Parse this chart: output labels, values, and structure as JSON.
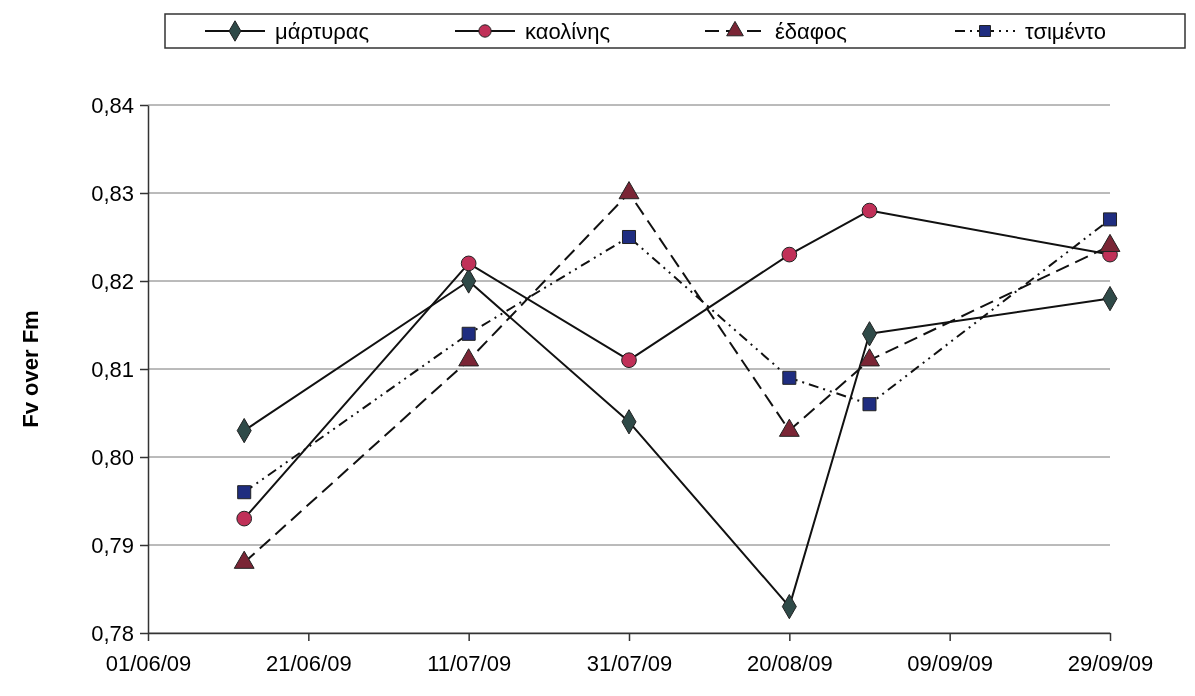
{
  "chart_data": {
    "type": "line",
    "ylabel": "Fv over Fm",
    "x": [
      "2009-06-13",
      "2009-07-11",
      "2009-07-31",
      "2009-08-20",
      "2009-08-30",
      "2009-09-29"
    ],
    "xlim": [
      "2009-06-01",
      "2009-09-29"
    ],
    "xticks": [
      {
        "value": "2009-06-01",
        "label": "01/06/09"
      },
      {
        "value": "2009-06-21",
        "label": "21/06/09"
      },
      {
        "value": "2009-07-11",
        "label": "11/07/09"
      },
      {
        "value": "2009-07-31",
        "label": "31/07/09"
      },
      {
        "value": "2009-08-20",
        "label": "20/08/09"
      },
      {
        "value": "2009-09-09",
        "label": "09/09/09"
      },
      {
        "value": "2009-09-29",
        "label": "29/09/09"
      }
    ],
    "ylim": [
      0.78,
      0.84
    ],
    "yticks": [
      {
        "value": 0.78,
        "label": "0,78"
      },
      {
        "value": 0.79,
        "label": "0,79"
      },
      {
        "value": 0.8,
        "label": "0,80"
      },
      {
        "value": 0.81,
        "label": "0,81"
      },
      {
        "value": 0.82,
        "label": "0,82"
      },
      {
        "value": 0.83,
        "label": "0,83"
      },
      {
        "value": 0.84,
        "label": "0,84"
      }
    ],
    "grid": "y",
    "legend": "top",
    "series": [
      {
        "name": "μάρτυρας",
        "color": "#2f4a48",
        "marker": "diamond",
        "line_style": "solid",
        "values": [
          0.803,
          0.82,
          0.804,
          0.783,
          0.814,
          0.818
        ]
      },
      {
        "name": "καολίνης",
        "color": "#c03058",
        "marker": "circle",
        "line_style": "solid",
        "values": [
          0.793,
          0.822,
          0.811,
          0.823,
          0.828,
          0.823
        ]
      },
      {
        "name": "έδαφος",
        "color": "#7a2535",
        "marker": "triangle",
        "line_style": "dashed",
        "values": [
          0.788,
          0.811,
          0.83,
          0.803,
          0.811,
          0.824
        ]
      },
      {
        "name": "τσιμέντο",
        "color": "#1f2d80",
        "marker": "square",
        "line_style": "dotted",
        "values": [
          0.796,
          0.814,
          0.825,
          0.809,
          0.806,
          0.827
        ]
      }
    ]
  }
}
